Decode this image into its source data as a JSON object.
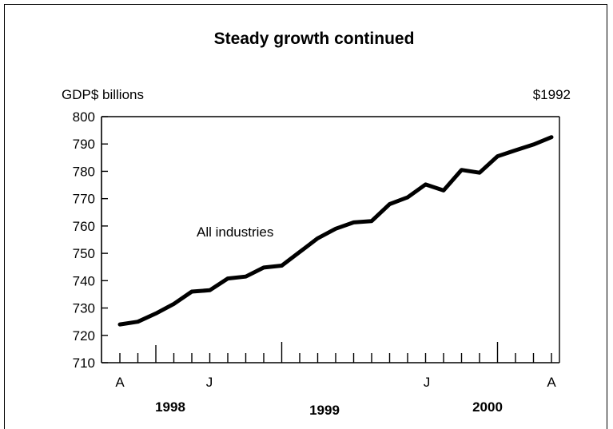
{
  "chart_data": {
    "type": "line",
    "title": "Steady growth continued",
    "ylabel": "GDP$ billions",
    "units_note": "$1992",
    "ylim": [
      710,
      800
    ],
    "yticks": [
      710,
      720,
      730,
      740,
      750,
      760,
      770,
      780,
      790,
      800
    ],
    "grid": false,
    "month_labels": [
      "A",
      "J",
      "J",
      "A"
    ],
    "year_labels": [
      "1998",
      "1999",
      "2000"
    ],
    "annotations": [
      "All industries"
    ],
    "series": [
      {
        "name": "All industries",
        "x": [
          "1998-04",
          "1998-05",
          "1998-06",
          "1998-07",
          "1998-08",
          "1998-09",
          "1998-10",
          "1998-11",
          "1998-12",
          "1999-01",
          "1999-02",
          "1999-03",
          "1999-04",
          "1999-05",
          "1999-06",
          "1999-07",
          "1999-08",
          "1999-09",
          "1999-10",
          "1999-11",
          "1999-12",
          "2000-01",
          "2000-02",
          "2000-03",
          "2000-04"
        ],
        "values": [
          724.0,
          725.0,
          728.0,
          731.5,
          736.0,
          736.5,
          740.8,
          741.5,
          744.8,
          745.5,
          750.5,
          755.5,
          759.0,
          761.3,
          761.8,
          768.0,
          770.5,
          775.2,
          773.0,
          780.5,
          779.5,
          785.5,
          787.7,
          789.8,
          792.5
        ]
      }
    ]
  }
}
